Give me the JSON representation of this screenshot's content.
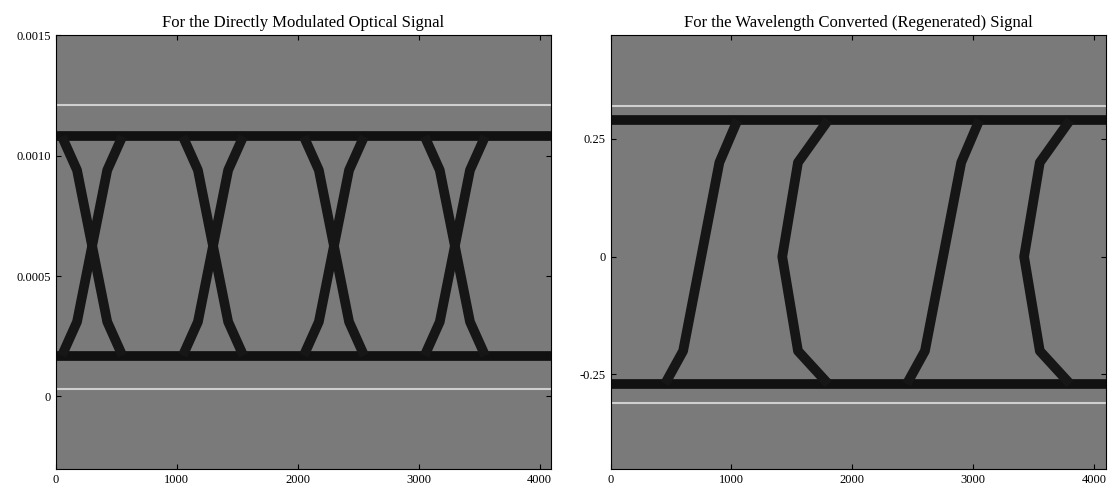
{
  "chart_data": [
    {
      "type": "line",
      "title": "For the Directly Modulated Optical Signal",
      "xlim": [
        0,
        4096
      ],
      "xticks": [
        0,
        1000,
        2000,
        3000,
        4000
      ],
      "ylim": [
        -0.0003,
        0.0015
      ],
      "yticks": [
        0,
        0.0005,
        {
          "value": 0.001,
          "label": "0.0010"
        },
        0.0015
      ],
      "series": [
        {
          "color": "#cfcfcf",
          "x": [
            0,
            4096
          ],
          "values": [
            0.00121,
            0.00121
          ]
        },
        {
          "color": "#cfcfcf",
          "x": [
            0,
            4096
          ],
          "values": [
            3e-05,
            3e-05
          ]
        },
        {
          "color": "#111111",
          "x": [
            0,
            4096
          ],
          "values": [
            0.00108,
            0.00108
          ]
        },
        {
          "color": "#111111",
          "x": [
            0,
            4096
          ],
          "values": [
            0.00017,
            0.00017
          ]
        },
        {
          "color": "#161616",
          "x": [
            50,
            175,
            300,
            425,
            550,
            1000,
            1050,
            1175,
            1300,
            1425,
            1550,
            2000,
            2050,
            2175,
            2300,
            2425,
            2550,
            3000,
            3050,
            3175,
            3300,
            3425,
            3550
          ],
          "values": [
            0.00017,
            0.00031,
            0.000625,
            0.00094,
            0.00108,
            null,
            0.00017,
            0.00031,
            0.000625,
            0.00094,
            0.00108,
            null,
            0.00017,
            0.00031,
            0.000625,
            0.00094,
            0.00108,
            null,
            0.00017,
            0.00031,
            0.000625,
            0.00094,
            0.00108
          ]
        },
        {
          "color": "#161616",
          "x": [
            50,
            175,
            300,
            425,
            550,
            1000,
            1050,
            1175,
            1300,
            1425,
            1550,
            2000,
            2050,
            2175,
            2300,
            2425,
            2550,
            3000,
            3050,
            3175,
            3300,
            3425,
            3550
          ],
          "values": [
            0.00108,
            0.00094,
            0.000625,
            0.00031,
            0.00017,
            null,
            0.00108,
            0.00094,
            0.000625,
            0.00031,
            0.00017,
            null,
            0.00108,
            0.00094,
            0.000625,
            0.00031,
            0.00017,
            null,
            0.00108,
            0.00094,
            0.000625,
            0.00031,
            0.00017
          ]
        }
      ]
    },
    {
      "type": "line",
      "title": "For the Wavelength Converted (Regenerated) Signal",
      "xlim": [
        0,
        4096
      ],
      "xticks": [
        0,
        1000,
        2000,
        3000,
        4000
      ],
      "ylim": [
        -0.45,
        0.47
      ],
      "yticks": [
        -0.25,
        0,
        0.25
      ],
      "series": [
        {
          "color": "#cfcfcf",
          "x": [
            0,
            4096
          ],
          "values": [
            0.32,
            0.32
          ]
        },
        {
          "color": "#cfcfcf",
          "x": [
            0,
            4096
          ],
          "values": [
            -0.31,
            -0.31
          ]
        },
        {
          "color": "#111111",
          "x": [
            0,
            4096
          ],
          "values": [
            0.29,
            0.29
          ]
        },
        {
          "color": "#111111",
          "x": [
            0,
            4096
          ],
          "values": [
            -0.27,
            -0.27
          ]
        },
        {
          "color": "#161616",
          "x": [
            450,
            600,
            750,
            900,
            1050,
            1100,
            2450,
            2600,
            2750,
            2900,
            3050
          ],
          "values": [
            -0.27,
            -0.2,
            0,
            0.2,
            0.29,
            null,
            -0.27,
            -0.2,
            0,
            0.2,
            0.29
          ]
        },
        {
          "color": "#161616",
          "x": [
            1800,
            1550,
            1420,
            1550,
            1800,
            1850,
            3800,
            3550,
            3420,
            3550,
            3800
          ],
          "values": [
            0.29,
            0.2,
            0,
            -0.2,
            -0.27,
            null,
            0.29,
            0.2,
            0,
            -0.2,
            -0.27
          ]
        }
      ]
    }
  ]
}
